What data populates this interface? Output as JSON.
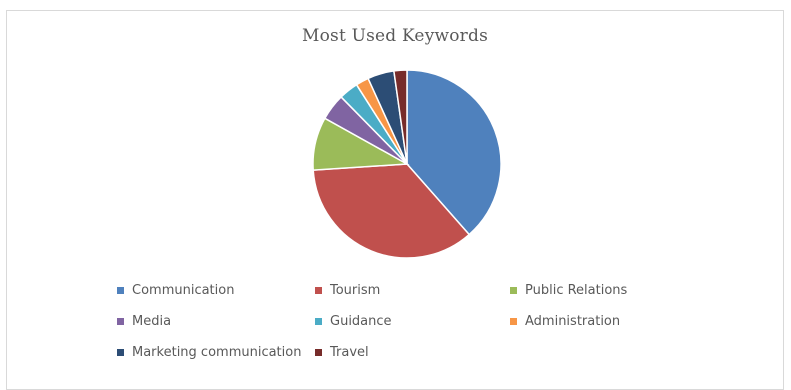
{
  "chart_data": {
    "type": "pie",
    "title": "Most Used Keywords",
    "legend_position": "bottom",
    "categories": [
      "Communication",
      "Tourism",
      "Public Relations",
      "Media",
      "Guidance",
      "Administration",
      "Marketing communication",
      "Travel"
    ],
    "values": [
      38,
      35,
      9,
      4.5,
      3.3,
      2.2,
      4.5,
      2.2
    ],
    "colors": [
      "#4F81BD",
      "#C0504D",
      "#9BBB59",
      "#8064A2",
      "#4BACC6",
      "#F79646",
      "#2C4D75",
      "#772C2A"
    ]
  }
}
